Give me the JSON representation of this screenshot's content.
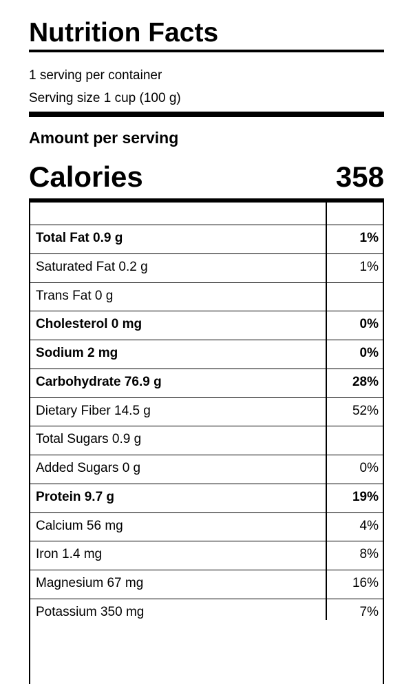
{
  "header": {
    "title": "Nutrition Facts",
    "servings": "1 serving per container",
    "serving_size": "Serving size 1 cup (100 g)"
  },
  "amount_per_serving": "Amount per serving",
  "calories": {
    "label": "Calories",
    "value": 358
  },
  "table": {
    "rows": [
      {
        "label": "Total Fat 0.9 g",
        "dv": "1%",
        "bold": true
      },
      {
        "label": "Saturated Fat 0.2 g",
        "dv": "1%",
        "bold": false
      },
      {
        "label": "Trans Fat 0 g",
        "bold": false
      },
      {
        "label": "Cholesterol 0 mg",
        "dv": "0%",
        "bold": true
      },
      {
        "label": "Sodium 2 mg",
        "dv": "0%",
        "bold": true
      },
      {
        "label": "Carbohydrate 76.9 g",
        "dv": "28%",
        "bold": true
      },
      {
        "label": "Dietary Fiber 14.5 g",
        "dv": "52%",
        "bold": false
      },
      {
        "label": "Total Sugars 0.9 g",
        "bold": false
      },
      {
        "label": "Added Sugars 0 g",
        "dv": "0%",
        "bold": false
      },
      {
        "label": "Protein 9.7 g",
        "dv": "19%",
        "bold": true
      },
      {
        "label": "Calcium 56 mg",
        "dv": "4%",
        "bold": false
      },
      {
        "label": "Iron 1.4 mg",
        "dv": "8%",
        "bold": false
      },
      {
        "label": "Magnesium 67 mg",
        "dv": "16%",
        "bold": false
      },
      {
        "label": "Potassium 350 mg",
        "dv": "7%",
        "bold": false
      }
    ]
  }
}
